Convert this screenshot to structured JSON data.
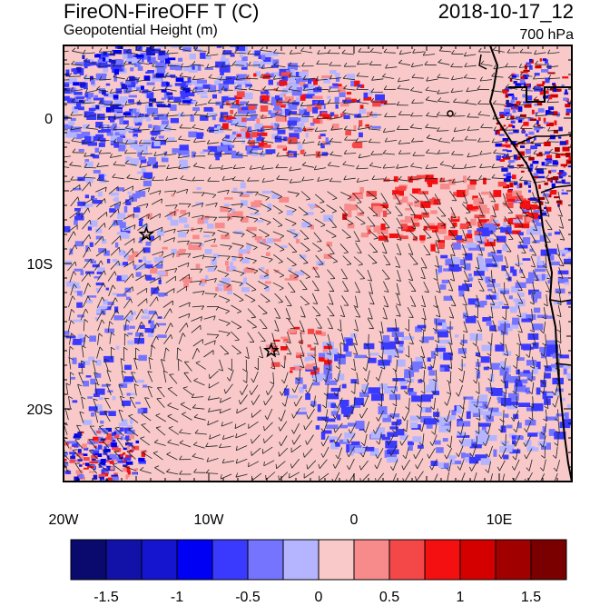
{
  "title": {
    "left": "FireON-FireOFF T (C)",
    "right": "2018-10-17_12",
    "subtitle_left": "Geopotential Height (m)",
    "subtitle_right": "700 hPa"
  },
  "map": {
    "lon_range": [
      -20,
      15
    ],
    "lat_range": [
      -25,
      5
    ],
    "lon_ticks": [
      {
        "value": -20,
        "label": "20W"
      },
      {
        "value": -10,
        "label": "10W"
      },
      {
        "value": 0,
        "label": "0"
      },
      {
        "value": 10,
        "label": "10E"
      }
    ],
    "lat_ticks": [
      {
        "value": 0,
        "label": "0"
      },
      {
        "value": -10,
        "label": "10S"
      },
      {
        "value": -20,
        "label": "20S"
      }
    ],
    "markers": [
      {
        "name": "star-marker-1",
        "lon": -14.3,
        "lat": -8.0
      },
      {
        "name": "star-marker-2",
        "lon": -5.7,
        "lat": -16.0
      }
    ],
    "background_color": "#f9c9c9",
    "wind_barbs": "dense barbs over whole domain"
  },
  "colorbar": {
    "colors": [
      "#0a0a6e",
      "#1212a8",
      "#1515cf",
      "#0000f5",
      "#3a3aff",
      "#7474ff",
      "#b5b5ff",
      "#f9c9c9",
      "#f78a8a",
      "#f44848",
      "#f41010",
      "#d40000",
      "#a00000",
      "#7a0000"
    ],
    "labels": [
      {
        "index": 1,
        "text": "-1.5"
      },
      {
        "index": 3,
        "text": "-1"
      },
      {
        "index": 5,
        "text": "-0.5"
      },
      {
        "index": 7,
        "text": "0"
      },
      {
        "index": 9,
        "text": "0.5"
      },
      {
        "index": 11,
        "text": "1"
      },
      {
        "index": 13,
        "text": "1.5"
      }
    ]
  }
}
